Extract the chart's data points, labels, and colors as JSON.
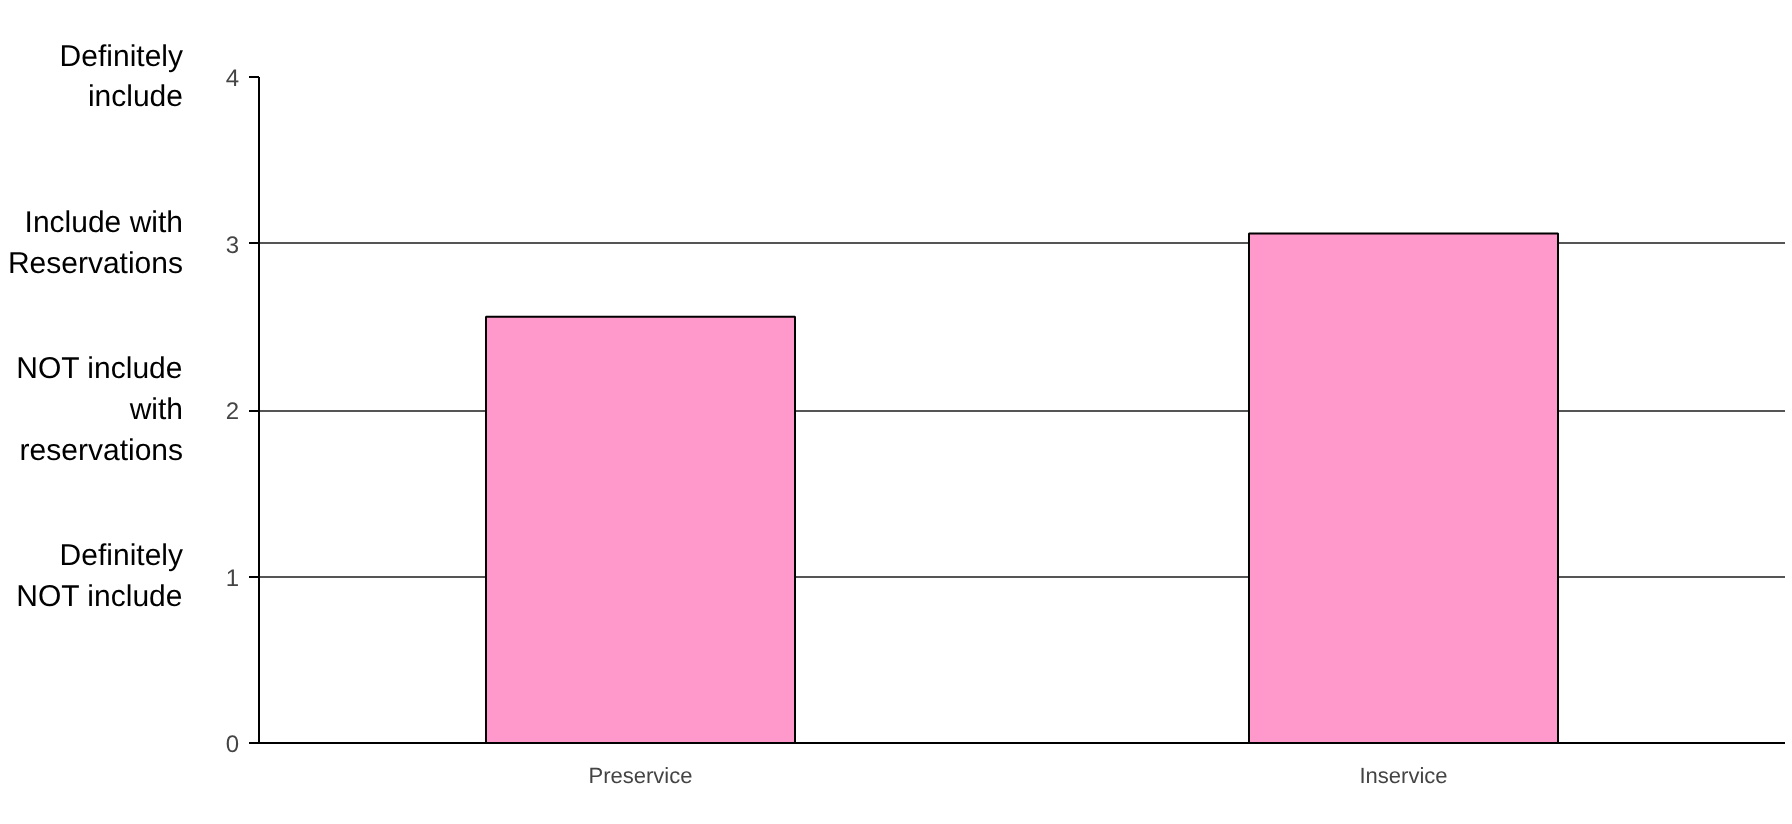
{
  "chart_data": {
    "type": "bar",
    "categories": [
      "Preservice",
      "Inservice"
    ],
    "values": [
      2.56,
      3.06
    ],
    "color": "#ff99cc",
    "ylim": [
      0,
      4
    ],
    "yticks": [
      0,
      1,
      2,
      3,
      4
    ],
    "grid": "y",
    "annotations": [
      "Definitely\ninclude",
      "Include with\nReservations",
      "NOT include\nwith\nreservations",
      "Definitely\nNOT include"
    ]
  }
}
